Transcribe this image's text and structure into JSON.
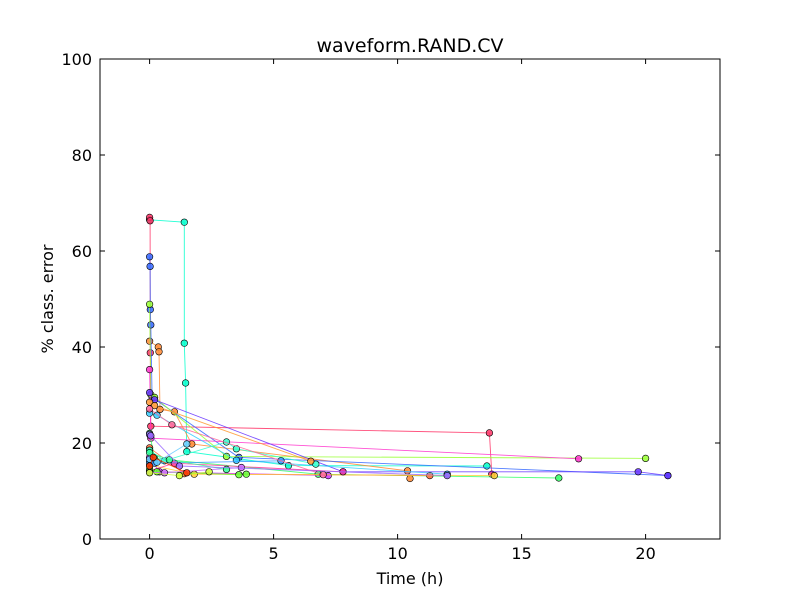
{
  "chart_data": {
    "type": "line",
    "title": "waveform.RAND.CV",
    "xlabel": "Time (h)",
    "ylabel": "% class. error",
    "xlim": [
      -2,
      23
    ],
    "ylim": [
      0,
      100
    ],
    "xticks": [
      0,
      5,
      10,
      15,
      20
    ],
    "yticks": [
      0,
      20,
      40,
      60,
      80,
      100
    ],
    "grid": false,
    "legend": "none",
    "series": [
      {
        "color": "#00ffcc",
        "points": [
          [
            0.0,
            66.5
          ],
          [
            1.4,
            66.0
          ],
          [
            1.4,
            40.8
          ],
          [
            1.45,
            32.5
          ],
          [
            1.5,
            18.2
          ],
          [
            5.6,
            15.3
          ],
          [
            13.6,
            15.2
          ]
        ]
      },
      {
        "color": "#ff3366",
        "points": [
          [
            0.0,
            67.0
          ],
          [
            0.02,
            66.3
          ],
          [
            0.03,
            38.8
          ],
          [
            0.05,
            23.5
          ],
          [
            13.7,
            22.1
          ],
          [
            13.8,
            13.5
          ]
        ]
      },
      {
        "color": "#ff8833",
        "points": [
          [
            0.0,
            41.2
          ],
          [
            0.35,
            40.0
          ],
          [
            0.38,
            39.0
          ],
          [
            0.42,
            27.0
          ],
          [
            1.0,
            26.5
          ],
          [
            1.7,
            19.8
          ],
          [
            10.4,
            14.2
          ],
          [
            10.5,
            12.6
          ]
        ]
      },
      {
        "color": "#3366ff",
        "points": [
          [
            0.0,
            58.8
          ],
          [
            0.02,
            56.8
          ],
          [
            0.03,
            47.8
          ],
          [
            0.05,
            44.6
          ],
          [
            0.1,
            29.5
          ],
          [
            3.6,
            17.0
          ],
          [
            20.9,
            13.2
          ]
        ]
      },
      {
        "color": "#99ff33",
        "points": [
          [
            0.0,
            48.9
          ],
          [
            0.05,
            30.1
          ],
          [
            0.2,
            29.5
          ],
          [
            3.1,
            17.2
          ],
          [
            20.0,
            16.8
          ]
        ]
      },
      {
        "color": "#ff33cc",
        "points": [
          [
            0.0,
            35.3
          ],
          [
            0.05,
            21.0
          ],
          [
            17.3,
            16.7
          ]
        ]
      },
      {
        "color": "#6633ff",
        "points": [
          [
            0.0,
            30.5
          ],
          [
            0.2,
            29.0
          ],
          [
            7.8,
            14.0
          ],
          [
            19.7,
            14.0
          ],
          [
            20.9,
            13.2
          ]
        ]
      },
      {
        "color": "#33ff66",
        "points": [
          [
            0.0,
            22.0
          ],
          [
            0.2,
            16.8
          ],
          [
            6.8,
            13.5
          ],
          [
            16.5,
            12.7
          ]
        ]
      },
      {
        "color": "#ff6633",
        "points": [
          [
            0.0,
            19.0
          ],
          [
            1.4,
            13.6
          ],
          [
            11.3,
            13.2
          ]
        ]
      },
      {
        "color": "#33ccff",
        "points": [
          [
            0.0,
            26.2
          ],
          [
            0.3,
            25.8
          ],
          [
            3.5,
            16.4
          ],
          [
            12.0,
            13.5
          ]
        ]
      },
      {
        "color": "#cc33ff",
        "points": [
          [
            0.0,
            17.0
          ],
          [
            0.4,
            14.0
          ],
          [
            7.2,
            13.2
          ]
        ]
      },
      {
        "color": "#ffcc33",
        "points": [
          [
            0.0,
            15.4
          ],
          [
            1.8,
            13.5
          ],
          [
            13.9,
            13.2
          ]
        ]
      },
      {
        "color": "#33ffcc",
        "points": [
          [
            0.0,
            18.5
          ],
          [
            0.6,
            16.3
          ],
          [
            3.1,
            20.2
          ],
          [
            3.5,
            18.8
          ],
          [
            6.7,
            15.6
          ]
        ]
      },
      {
        "color": "#ff3399",
        "points": [
          [
            0.0,
            14.2
          ],
          [
            1.0,
            15.8
          ],
          [
            7.8,
            14.0
          ]
        ]
      },
      {
        "color": "#66ff33",
        "points": [
          [
            0.0,
            14.5
          ],
          [
            0.3,
            14.0
          ],
          [
            3.6,
            13.4
          ],
          [
            3.9,
            13.5
          ]
        ]
      },
      {
        "color": "#3399ff",
        "points": [
          [
            0.0,
            16.0
          ],
          [
            0.2,
            15.8
          ],
          [
            5.3,
            16.3
          ]
        ]
      },
      {
        "color": "#ff9933",
        "points": [
          [
            0.0,
            28.5
          ],
          [
            0.2,
            27.8
          ],
          [
            6.5,
            16.2
          ]
        ]
      },
      {
        "color": "#cc66ff",
        "points": [
          [
            0.0,
            13.9
          ],
          [
            0.6,
            13.8
          ],
          [
            3.7,
            14.9
          ]
        ]
      },
      {
        "color": "#33ff99",
        "points": [
          [
            0.0,
            18.0
          ],
          [
            0.8,
            16.5
          ],
          [
            3.1,
            14.5
          ]
        ]
      },
      {
        "color": "#ff6699",
        "points": [
          [
            0.0,
            27.1
          ],
          [
            0.9,
            23.8
          ],
          [
            7.0,
            13.4
          ]
        ]
      },
      {
        "color": "#9966ff",
        "points": [
          [
            0.0,
            21.8
          ],
          [
            0.05,
            21.5
          ],
          [
            1.2,
            15.2
          ],
          [
            12.0,
            13.2
          ]
        ]
      },
      {
        "color": "#66ccff",
        "points": [
          [
            0.0,
            16.6
          ],
          [
            0.3,
            16.0
          ],
          [
            1.5,
            19.8
          ]
        ]
      },
      {
        "color": "#ccff33",
        "points": [
          [
            0.0,
            13.8
          ],
          [
            1.2,
            13.2
          ],
          [
            2.4,
            14.0
          ]
        ]
      },
      {
        "color": "#ff3300",
        "points": [
          [
            0.0,
            15.2
          ],
          [
            0.15,
            17.0
          ],
          [
            1.5,
            13.8
          ]
        ]
      }
    ]
  }
}
